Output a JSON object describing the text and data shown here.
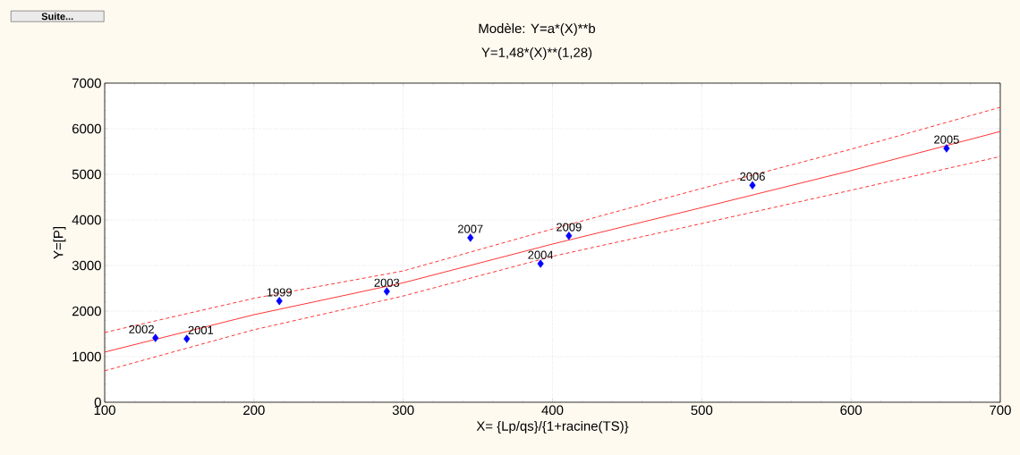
{
  "chart_data": {
    "type": "scatter",
    "title": "Modèle: Y=a*(X)**b",
    "subtitle": "Y=1,48*(X)**(1,28)",
    "xlabel": "X= {Lp/qs}/{1+racine(TS)}",
    "ylabel": "Y=[P]",
    "annotations": [
      "Suite...",
      {
        "text": "2002",
        "x": 134,
        "y": 1410
      },
      {
        "text": "2001",
        "x": 155,
        "y": 1390
      },
      {
        "text": "1999",
        "x": 217,
        "y": 2220
      },
      {
        "text": "2003",
        "x": 289,
        "y": 2430
      },
      {
        "text": "2007",
        "x": 345,
        "y": 3610
      },
      {
        "text": "2004",
        "x": 392,
        "y": 3040
      },
      {
        "text": "2009",
        "x": 411,
        "y": 3650
      },
      {
        "text": "2006",
        "x": 534,
        "y": 4760
      },
      {
        "text": "2005",
        "x": 664,
        "y": 5570
      }
    ],
    "xlim": [
      100,
      700
    ],
    "ylim": [
      0,
      7000
    ],
    "xticks": [
      100,
      200,
      300,
      400,
      500,
      600,
      700
    ],
    "yticks": [
      0,
      1000,
      2000,
      3000,
      4000,
      5000,
      6000,
      7000
    ],
    "grid": true,
    "series": [
      {
        "color": "#0000ff",
        "marker": "diamond",
        "x": [
          134,
          155,
          217,
          289,
          345,
          392,
          411,
          534,
          664
        ],
        "values": [
          1410,
          1390,
          2220,
          2430,
          3610,
          3040,
          3650,
          4760,
          5570
        ]
      },
      {
        "type": "line",
        "color": "#ff0000",
        "line_style": "solid",
        "x": [
          100,
          200,
          300,
          400,
          500,
          600,
          700
        ],
        "values": [
          1100,
          1920,
          2620,
          3470,
          4270,
          5080,
          5940
        ]
      },
      {
        "type": "line",
        "color": "#ff0000",
        "line_style": "dashed",
        "x": [
          100,
          200,
          300,
          400,
          500,
          600,
          700
        ],
        "values": [
          1530,
          2280,
          2880,
          3800,
          4690,
          5550,
          6470
        ]
      },
      {
        "type": "line",
        "color": "#ff0000",
        "line_style": "dashed",
        "x": [
          100,
          200,
          300,
          400,
          500,
          600,
          700
        ],
        "values": [
          690,
          1590,
          2330,
          3200,
          3920,
          4650,
          5390
        ]
      }
    ]
  }
}
